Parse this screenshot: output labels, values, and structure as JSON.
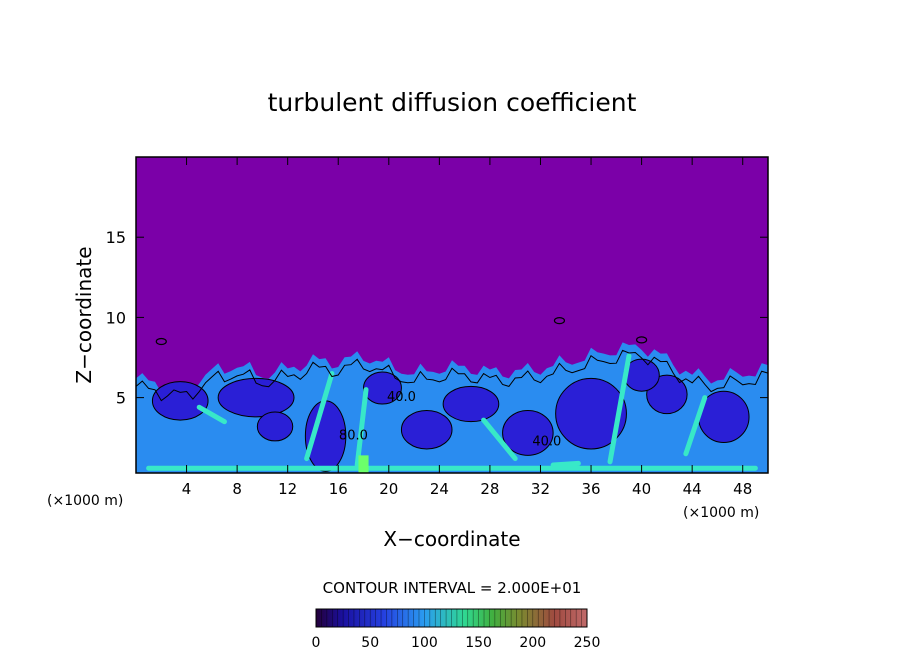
{
  "chart_data": {
    "type": "heatmap",
    "title": "turbulent diffusion coefficient",
    "xlabel": "X−coordinate",
    "ylabel": "Z−coordinate",
    "x_unit_left": "(×1000 m)",
    "x_unit_right": "(×1000 m)",
    "xlim": [
      0,
      50
    ],
    "ylim": [
      0.3,
      20
    ],
    "x_ticks": [
      4,
      8,
      12,
      16,
      20,
      24,
      28,
      32,
      36,
      40,
      44,
      48
    ],
    "y_ticks": [
      5,
      10,
      15
    ],
    "contour_interval_text": "CONTOUR INTERVAL = 2.000E+01",
    "contour_labels": [
      {
        "x": 32.5,
        "z": 2.0,
        "text": "40.0"
      },
      {
        "x": 17.2,
        "z": 2.4,
        "text": "80.0"
      },
      {
        "x": 21.0,
        "z": 4.8,
        "text": "40.0"
      }
    ],
    "colorbar": {
      "min": 0,
      "max": 250,
      "ticks": [
        0,
        50,
        100,
        150,
        200,
        250
      ]
    },
    "background_value": 0,
    "boundary_layer_top_z": [
      [
        0,
        6.2
      ],
      [
        2,
        5.8
      ],
      [
        4,
        5.6
      ],
      [
        6,
        6.6
      ],
      [
        8,
        7.0
      ],
      [
        10,
        6.4
      ],
      [
        12,
        6.8
      ],
      [
        14,
        7.3
      ],
      [
        16,
        7.2
      ],
      [
        18,
        7.6
      ],
      [
        20,
        7.0
      ],
      [
        22,
        6.5
      ],
      [
        24,
        6.8
      ],
      [
        26,
        6.9
      ],
      [
        28,
        6.6
      ],
      [
        30,
        6.6
      ],
      [
        32,
        6.8
      ],
      [
        34,
        7.2
      ],
      [
        36,
        7.6
      ],
      [
        38,
        8.0
      ],
      [
        40,
        8.2
      ],
      [
        42,
        7.4
      ],
      [
        44,
        6.4
      ],
      [
        46,
        6.2
      ],
      [
        48,
        6.5
      ],
      [
        50,
        6.8
      ]
    ],
    "colors": {
      "background": "#7b00a8",
      "low": "#2a1fd6",
      "mid": "#2a8cf0",
      "high": "#38e8c8",
      "peak": "#6cff6a"
    }
  }
}
